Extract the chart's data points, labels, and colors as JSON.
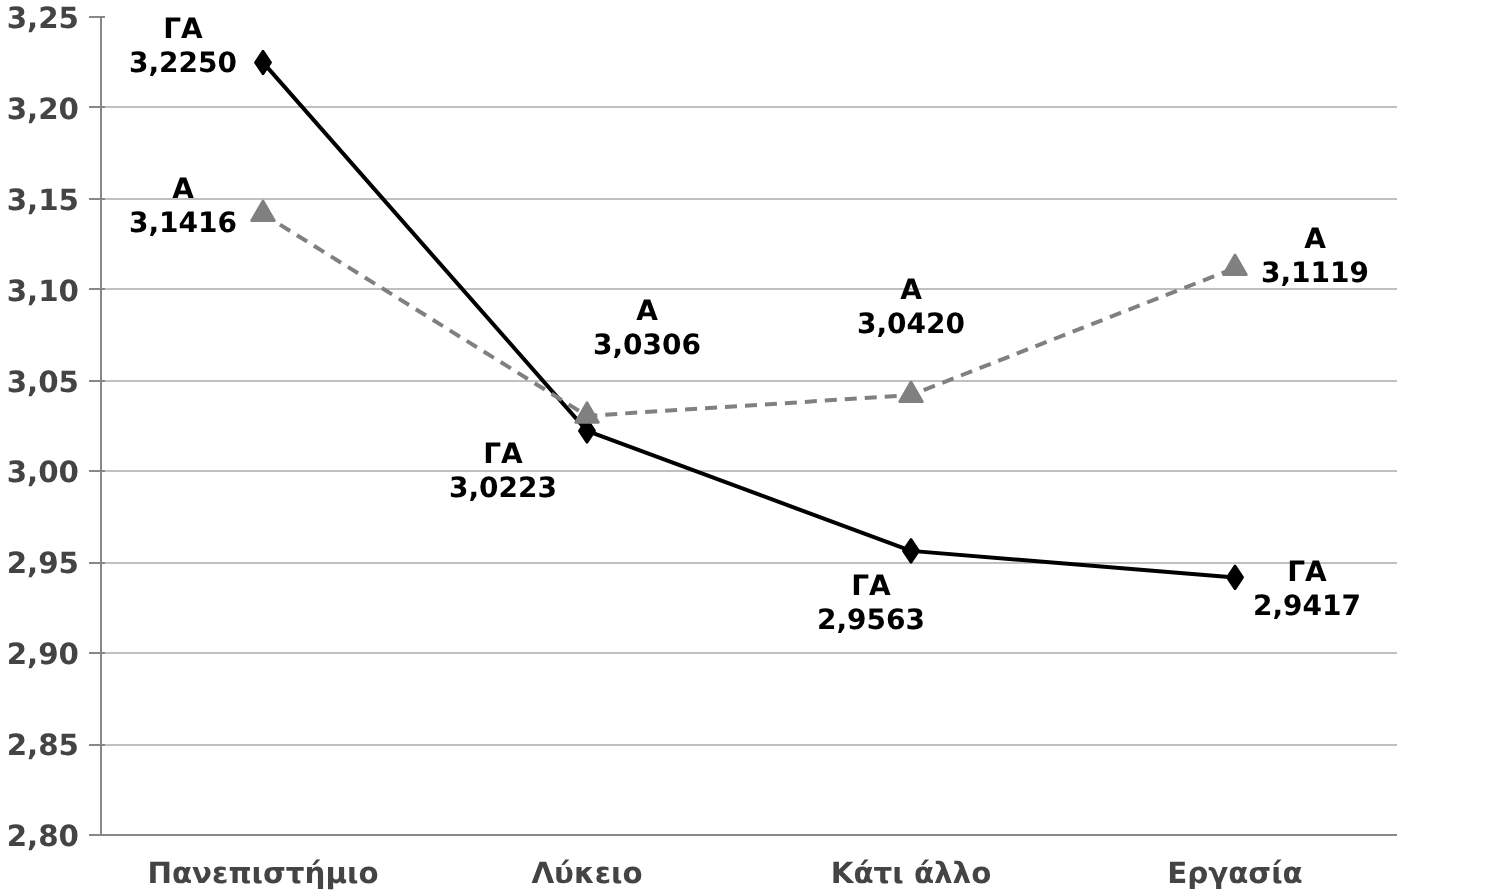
{
  "chart_data": {
    "type": "line",
    "categories": [
      "Πανεπιστήμιο",
      "Λύκειο",
      "Κάτι άλλο",
      "Εργασία"
    ],
    "series": [
      {
        "name": "ΓΑ",
        "color": "#000000",
        "line_style": "solid",
        "marker": "diamond",
        "values": [
          3.225,
          3.0223,
          2.9563,
          2.9417
        ],
        "value_labels": [
          "3,2250",
          "3,0223",
          "2,9563",
          "2,9417"
        ]
      },
      {
        "name": "Α",
        "color": "#808080",
        "line_style": "dashed",
        "marker": "triangle",
        "values": [
          3.1416,
          3.0306,
          3.042,
          3.1119
        ],
        "value_labels": [
          "3,1416",
          "3,0306",
          "3,0420",
          "3,1119"
        ]
      }
    ],
    "ylim": [
      2.8,
      3.25
    ],
    "yticks": [
      {
        "value": 2.8,
        "label": "2,80"
      },
      {
        "value": 2.85,
        "label": "2,85"
      },
      {
        "value": 2.9,
        "label": "2,90"
      },
      {
        "value": 2.95,
        "label": "2,95"
      },
      {
        "value": 3.0,
        "label": "3,00"
      },
      {
        "value": 3.05,
        "label": "3,05"
      },
      {
        "value": 3.1,
        "label": "3,10"
      },
      {
        "value": 3.15,
        "label": "3,15"
      },
      {
        "value": 3.2,
        "label": "3,20"
      },
      {
        "value": 3.25,
        "label": "3,25"
      }
    ],
    "grid": "y",
    "legend": false
  }
}
